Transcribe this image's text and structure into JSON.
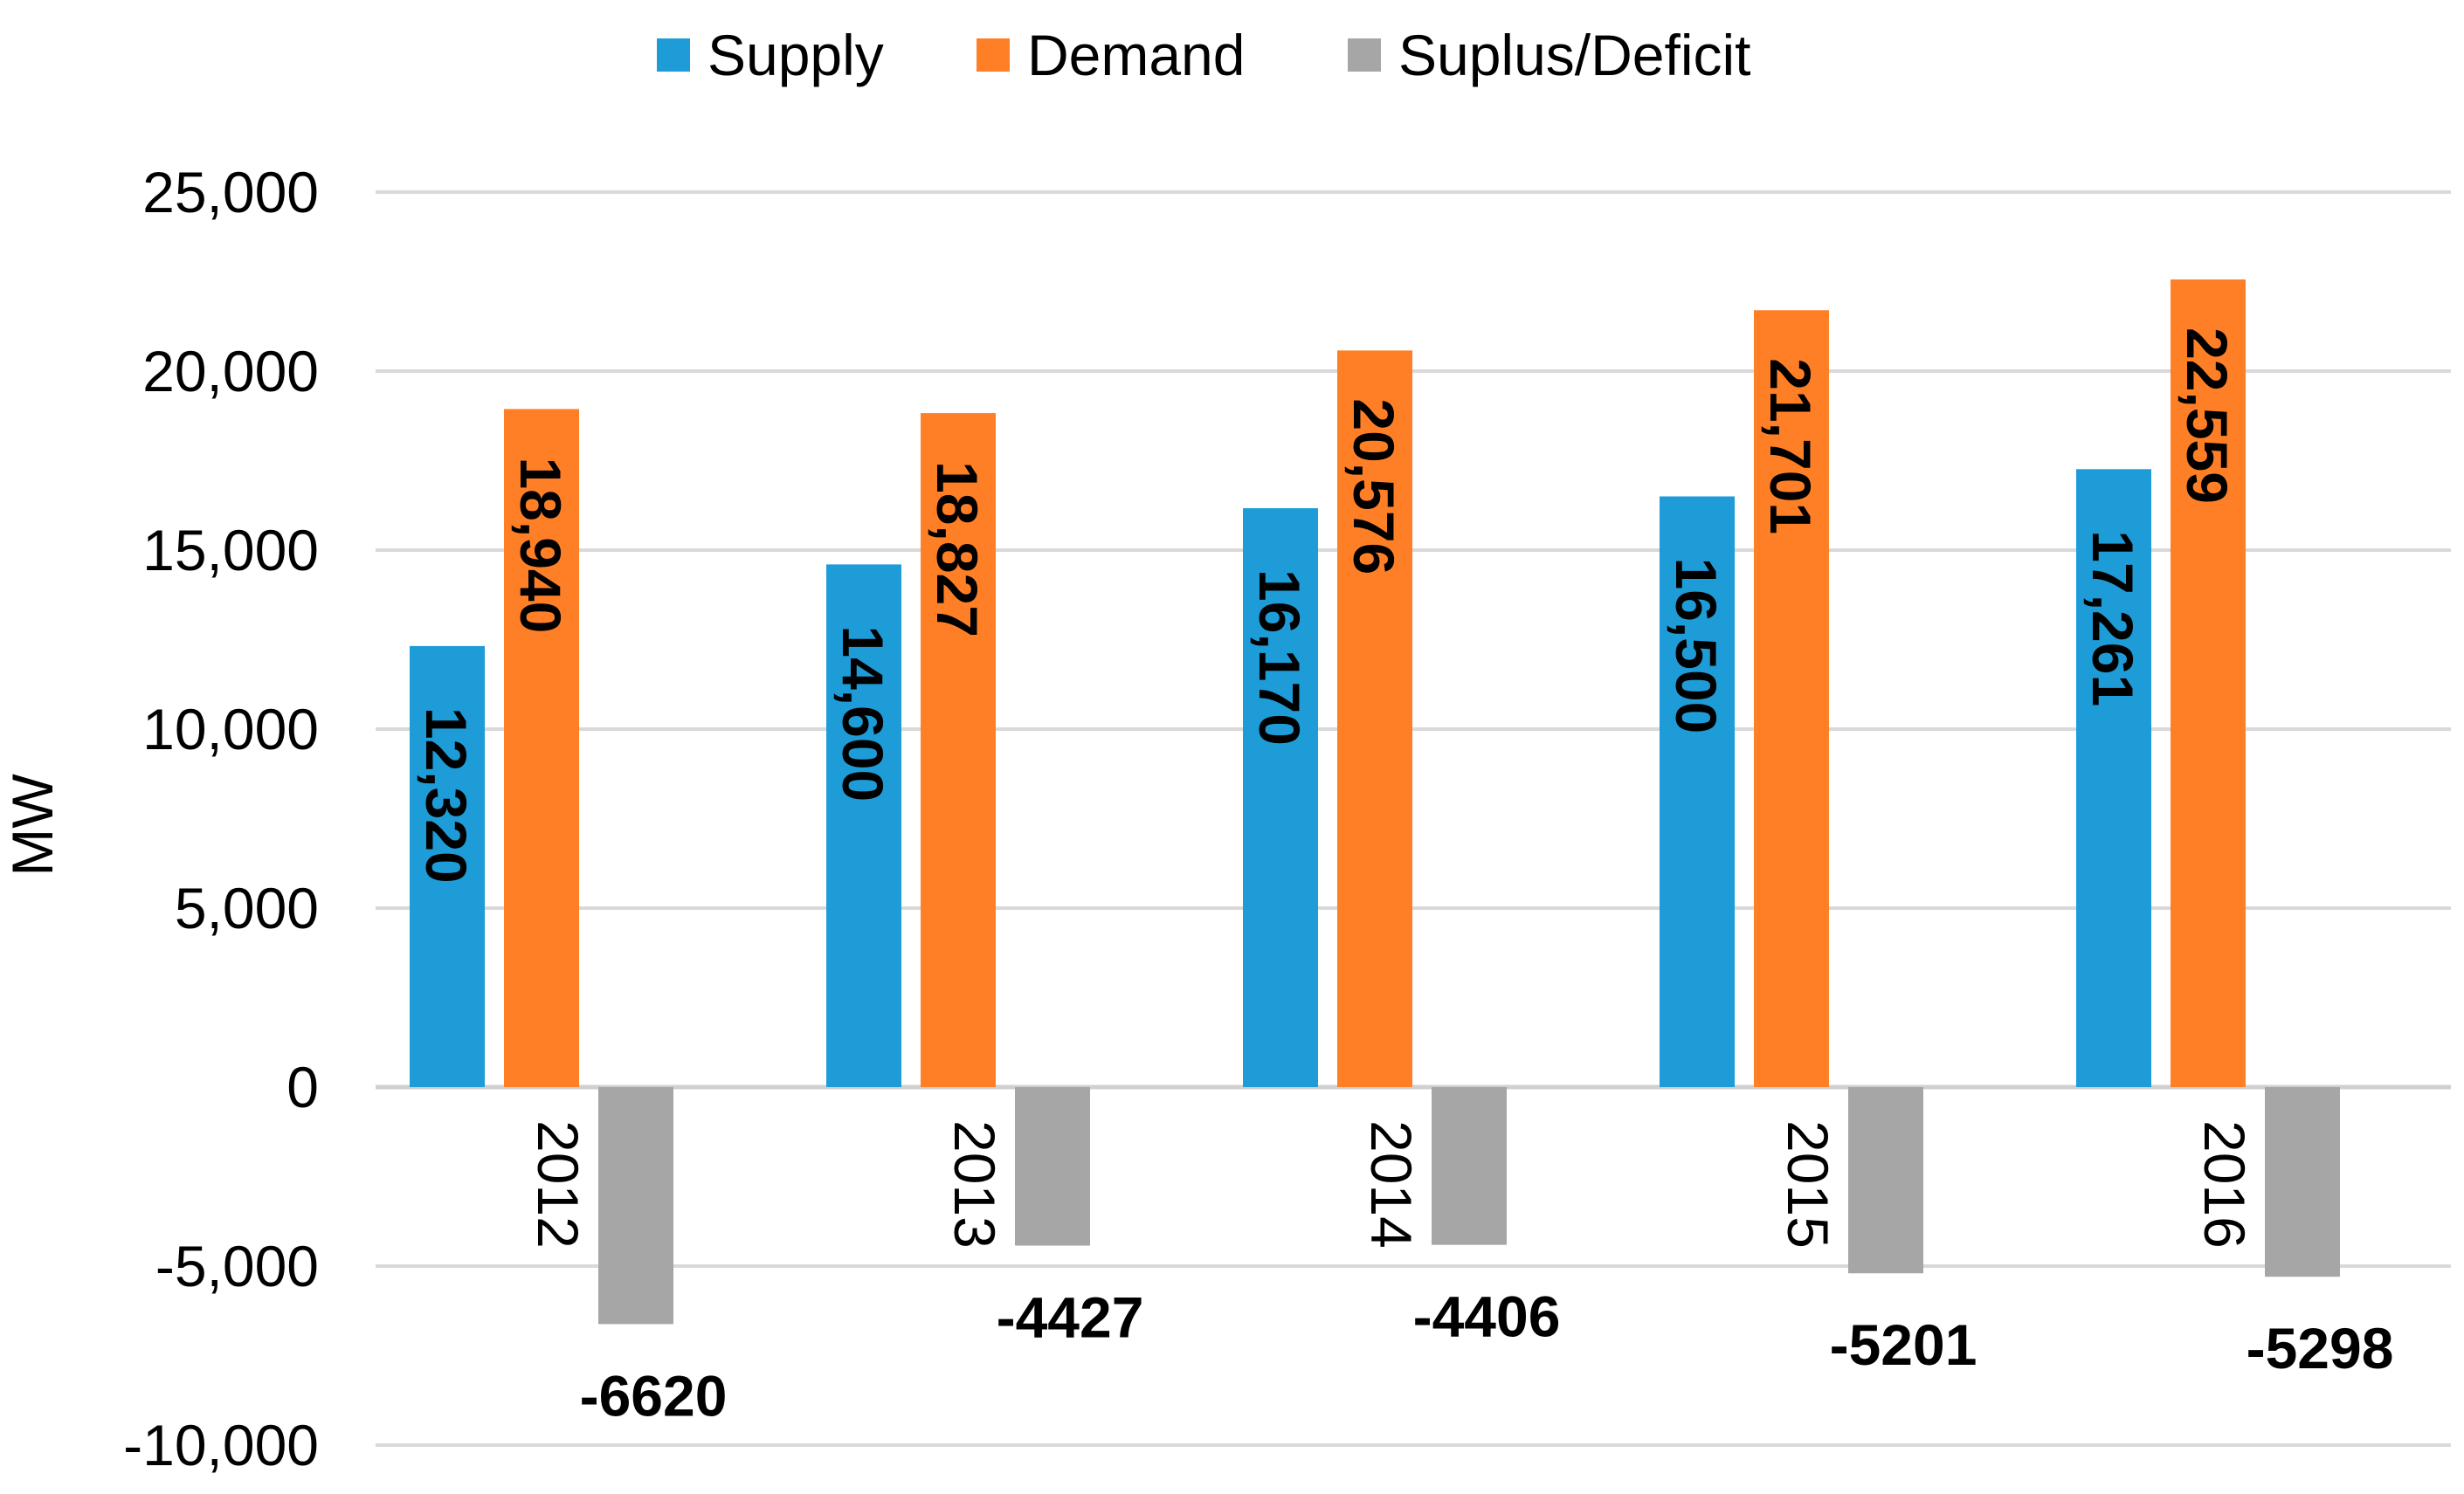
{
  "chart_data": {
    "type": "bar",
    "title": "",
    "xlabel": "",
    "ylabel": "MW",
    "ylim": [
      -10000,
      25000
    ],
    "yticks": [
      -10000,
      -5000,
      0,
      5000,
      10000,
      15000,
      20000,
      25000
    ],
    "ytick_labels": [
      "-10,000",
      "-5,000",
      "0",
      "5,000",
      "10,000",
      "15,000",
      "20,000",
      "25,000"
    ],
    "grid": true,
    "legend_position": "top",
    "categories": [
      "2012",
      "2013",
      "2014",
      "2015",
      "2016"
    ],
    "series": [
      {
        "name": "Supply",
        "color": "#1E9CD8",
        "values": [
          12320,
          14600,
          16170,
          16500,
          17261
        ],
        "labels": [
          "12,320",
          "14,600",
          "16,170",
          "16,500",
          "17,261"
        ]
      },
      {
        "name": "Demand",
        "color": "#FF7F27",
        "values": [
          18940,
          18827,
          20576,
          21701,
          22559
        ],
        "labels": [
          "18,940",
          "18,827",
          "20,576",
          "21,701",
          "22,559"
        ]
      },
      {
        "name": "Suplus/Deficit",
        "color": "#A6A6A6",
        "values": [
          -6620,
          -4427,
          -4406,
          -5201,
          -5298
        ],
        "labels": [
          "-6620",
          "-4427",
          "-4406",
          "-5201",
          "-5298"
        ]
      }
    ]
  }
}
